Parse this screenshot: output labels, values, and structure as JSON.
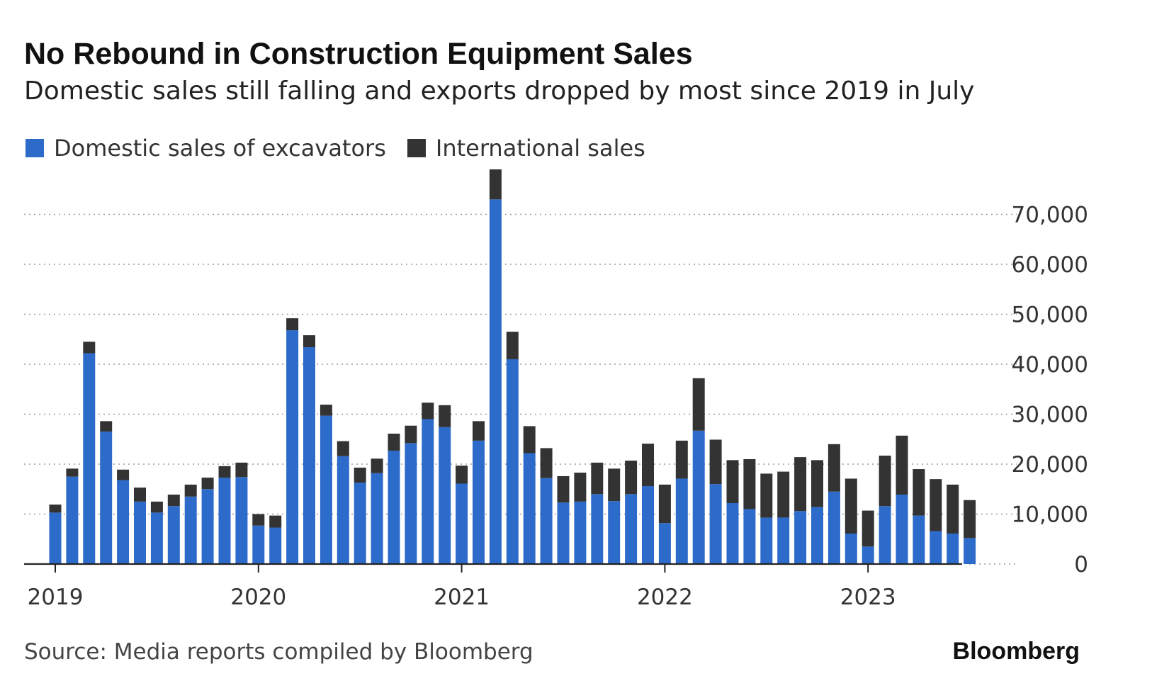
{
  "header": {
    "title": "No Rebound in Construction Equipment Sales",
    "subtitle": "Domestic sales still falling and exports dropped by most since 2019 in July"
  },
  "footer": {
    "source": "Source: Media reports compiled by Bloomberg",
    "brand": "Bloomberg"
  },
  "colors": {
    "domestic": "#2d6bcb",
    "international": "#333333",
    "grid": "#9a9a9a",
    "axis": "#222222"
  },
  "chart_data": {
    "type": "bar",
    "stacked": true,
    "title": "No Rebound in Construction Equipment Sales",
    "subtitle": "Domestic sales still falling and exports dropped by most since 2019 in July",
    "x_tick_labels": [
      "2019",
      "2020",
      "2021",
      "2022",
      "2023"
    ],
    "y_tick_labels": [
      "0",
      "10,000",
      "20,000",
      "30,000",
      "40,000",
      "50,000",
      "60,000",
      "70,000"
    ],
    "ylim": [
      0,
      80000
    ],
    "grid": "horizontal dotted",
    "y_axis_side": "right",
    "legend_position": "top-left",
    "categories": [
      "2019-01",
      "2019-02",
      "2019-03",
      "2019-04",
      "2019-05",
      "2019-06",
      "2019-07",
      "2019-08",
      "2019-09",
      "2019-10",
      "2019-11",
      "2019-12",
      "2020-01",
      "2020-02",
      "2020-03",
      "2020-04",
      "2020-05",
      "2020-06",
      "2020-07",
      "2020-08",
      "2020-09",
      "2020-10",
      "2020-11",
      "2020-12",
      "2021-01",
      "2021-02",
      "2021-03",
      "2021-04",
      "2021-05",
      "2021-06",
      "2021-07",
      "2021-08",
      "2021-09",
      "2021-10",
      "2021-11",
      "2021-12",
      "2022-01",
      "2022-02",
      "2022-03",
      "2022-04",
      "2022-05",
      "2022-06",
      "2022-07",
      "2022-08",
      "2022-09",
      "2022-10",
      "2022-11",
      "2022-12",
      "2023-01",
      "2023-02",
      "2023-03",
      "2023-04",
      "2023-05",
      "2023-06",
      "2023-07"
    ],
    "series": [
      {
        "name": "Domestic sales of excavators",
        "values": [
          10300,
          17500,
          42200,
          26500,
          16800,
          12500,
          10300,
          11600,
          13500,
          15000,
          17300,
          17400,
          7700,
          7300,
          46800,
          43400,
          29700,
          21600,
          16300,
          18200,
          22700,
          24200,
          29000,
          27400,
          16100,
          24700,
          73000,
          41000,
          22200,
          17200,
          12300,
          12500,
          14000,
          12600,
          14000,
          15600,
          8200,
          17100,
          26700,
          16000,
          12200,
          11000,
          9300,
          9300,
          10600,
          11400,
          14500,
          6100,
          3500,
          11600,
          13900,
          9700,
          6600,
          6100,
          5200
        ]
      },
      {
        "name": "International sales",
        "values": [
          1600,
          1600,
          2300,
          2100,
          2100,
          2800,
          2200,
          2300,
          2400,
          2300,
          2300,
          2900,
          2300,
          2400,
          2400,
          2400,
          2200,
          3000,
          3000,
          2900,
          3400,
          3500,
          3300,
          4400,
          3600,
          3900,
          6000,
          5500,
          5400,
          6000,
          5300,
          5800,
          6300,
          6500,
          6700,
          8500,
          7700,
          7600,
          10500,
          8900,
          8600,
          10000,
          8800,
          9200,
          10800,
          9400,
          9500,
          11000,
          7200,
          10100,
          11800,
          9300,
          10400,
          9800,
          7600
        ]
      }
    ]
  }
}
